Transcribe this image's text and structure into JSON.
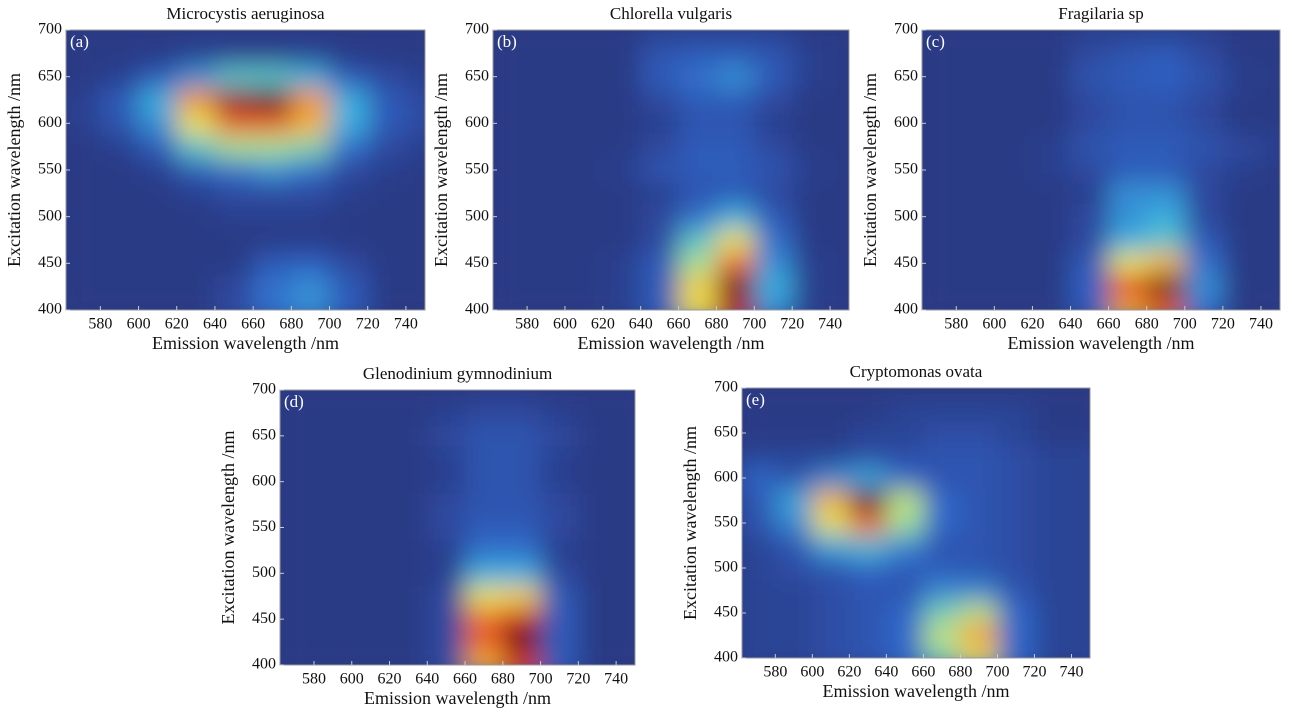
{
  "chart_data": [
    {
      "type": "heatmap",
      "title": "Microcystis aeruginosa",
      "label": "(a)",
      "xlabel": "Emission wavelength /nm",
      "ylabel": "Excitation wavelength /nm",
      "colormap": [
        "#2b3a85",
        "#2f64c8",
        "#3cb4e0",
        "#9ee39a",
        "#f3e34a",
        "#f39a2c",
        "#e0261e",
        "#5a0d10"
      ],
      "x": [
        570,
        590,
        610,
        630,
        650,
        670,
        690,
        710,
        730,
        750
      ],
      "y": [
        400,
        425,
        450,
        475,
        500,
        525,
        550,
        575,
        600,
        625,
        650,
        675,
        700
      ],
      "z": [
        [
          0.1,
          0.1,
          0.1,
          0.1,
          0.15,
          0.25,
          0.3,
          0.2,
          0.1,
          0.1
        ],
        [
          0.1,
          0.1,
          0.1,
          0.1,
          0.15,
          0.25,
          0.3,
          0.2,
          0.1,
          0.1
        ],
        [
          0.1,
          0.1,
          0.1,
          0.1,
          0.1,
          0.2,
          0.22,
          0.15,
          0.1,
          0.1
        ],
        [
          0.1,
          0.1,
          0.1,
          0.1,
          0.1,
          0.1,
          0.1,
          0.1,
          0.1,
          0.1
        ],
        [
          0.1,
          0.1,
          0.1,
          0.1,
          0.12,
          0.12,
          0.12,
          0.1,
          0.1,
          0.1
        ],
        [
          0.1,
          0.1,
          0.1,
          0.12,
          0.15,
          0.15,
          0.15,
          0.12,
          0.1,
          0.1
        ],
        [
          0.1,
          0.1,
          0.12,
          0.2,
          0.25,
          0.3,
          0.25,
          0.15,
          0.12,
          0.1
        ],
        [
          0.1,
          0.12,
          0.2,
          0.4,
          0.5,
          0.5,
          0.45,
          0.25,
          0.15,
          0.12
        ],
        [
          0.12,
          0.18,
          0.3,
          0.6,
          0.8,
          0.8,
          0.7,
          0.35,
          0.2,
          0.15
        ],
        [
          0.12,
          0.2,
          0.35,
          0.75,
          0.95,
          1,
          0.75,
          0.35,
          0.2,
          0.15
        ],
        [
          0.1,
          0.12,
          0.2,
          0.3,
          0.4,
          0.4,
          0.35,
          0.2,
          0.15,
          0.12
        ],
        [
          0.1,
          0.1,
          0.1,
          0.12,
          0.12,
          0.12,
          0.12,
          0.1,
          0.1,
          0.1
        ],
        [
          0.1,
          0.1,
          0.1,
          0.1,
          0.1,
          0.1,
          0.1,
          0.1,
          0.1,
          0.1
        ]
      ],
      "xlim": [
        562,
        750
      ],
      "ylim": [
        400,
        700
      ],
      "xticks": [
        580,
        600,
        620,
        640,
        660,
        680,
        700,
        720,
        740
      ],
      "yticks": [
        400,
        450,
        500,
        550,
        600,
        650,
        700
      ]
    },
    {
      "type": "heatmap",
      "title": "Chlorella vulgaris",
      "label": "(b)",
      "xlabel": "Emission wavelength /nm",
      "ylabel": "Excitation wavelength /nm",
      "colormap": [
        "#2b3a85",
        "#2f64c8",
        "#3cb4e0",
        "#9ee39a",
        "#f3e34a",
        "#f39a2c",
        "#e0261e",
        "#5a0d10"
      ],
      "x": [
        570,
        590,
        610,
        630,
        650,
        670,
        690,
        710,
        730,
        750
      ],
      "y": [
        400,
        425,
        450,
        475,
        500,
        525,
        550,
        575,
        600,
        625,
        650,
        675,
        700
      ],
      "z": [
        [
          0.1,
          0.1,
          0.1,
          0.12,
          0.2,
          0.6,
          0.9,
          0.3,
          0.12,
          0.1
        ],
        [
          0.1,
          0.1,
          0.1,
          0.12,
          0.2,
          0.65,
          1,
          0.35,
          0.12,
          0.1
        ],
        [
          0.1,
          0.1,
          0.1,
          0.12,
          0.2,
          0.5,
          0.8,
          0.3,
          0.12,
          0.1
        ],
        [
          0.1,
          0.1,
          0.1,
          0.1,
          0.15,
          0.4,
          0.6,
          0.25,
          0.1,
          0.1
        ],
        [
          0.1,
          0.1,
          0.1,
          0.1,
          0.15,
          0.25,
          0.35,
          0.2,
          0.1,
          0.1
        ],
        [
          0.1,
          0.1,
          0.1,
          0.1,
          0.12,
          0.18,
          0.2,
          0.15,
          0.1,
          0.1
        ],
        [
          0.1,
          0.1,
          0.1,
          0.12,
          0.18,
          0.2,
          0.2,
          0.18,
          0.12,
          0.1
        ],
        [
          0.1,
          0.1,
          0.1,
          0.1,
          0.15,
          0.2,
          0.2,
          0.15,
          0.1,
          0.1
        ],
        [
          0.1,
          0.1,
          0.1,
          0.1,
          0.12,
          0.18,
          0.18,
          0.12,
          0.1,
          0.1
        ],
        [
          0.1,
          0.1,
          0.1,
          0.1,
          0.15,
          0.2,
          0.2,
          0.15,
          0.1,
          0.1
        ],
        [
          0.1,
          0.1,
          0.1,
          0.1,
          0.2,
          0.25,
          0.3,
          0.2,
          0.12,
          0.1
        ],
        [
          0.1,
          0.1,
          0.1,
          0.1,
          0.18,
          0.2,
          0.2,
          0.18,
          0.12,
          0.1
        ],
        [
          0.1,
          0.1,
          0.1,
          0.1,
          0.12,
          0.12,
          0.12,
          0.12,
          0.1,
          0.1
        ]
      ],
      "xlim": [
        562,
        750
      ],
      "ylim": [
        400,
        700
      ],
      "xticks": [
        580,
        600,
        620,
        640,
        660,
        680,
        700,
        720,
        740
      ],
      "yticks": [
        400,
        450,
        500,
        550,
        600,
        650,
        700
      ]
    },
    {
      "type": "heatmap",
      "title": "Fragilaria sp",
      "label": "(c)",
      "xlabel": "Emission wavelength /nm",
      "ylabel": "Excitation wavelength /nm",
      "colormap": [
        "#2b3a85",
        "#2f64c8",
        "#3cb4e0",
        "#9ee39a",
        "#f3e34a",
        "#f39a2c",
        "#e0261e",
        "#5a0d10"
      ],
      "x": [
        570,
        590,
        610,
        630,
        650,
        670,
        690,
        710,
        730,
        750
      ],
      "y": [
        400,
        425,
        450,
        475,
        500,
        525,
        550,
        575,
        600,
        625,
        650,
        675,
        700
      ],
      "z": [
        [
          0.1,
          0.1,
          0.1,
          0.1,
          0.2,
          0.7,
          0.8,
          0.25,
          0.1,
          0.1
        ],
        [
          0.1,
          0.1,
          0.1,
          0.1,
          0.22,
          0.85,
          1,
          0.3,
          0.1,
          0.1
        ],
        [
          0.1,
          0.1,
          0.1,
          0.1,
          0.2,
          0.6,
          0.7,
          0.25,
          0.1,
          0.1
        ],
        [
          0.1,
          0.1,
          0.1,
          0.1,
          0.15,
          0.35,
          0.4,
          0.2,
          0.1,
          0.1
        ],
        [
          0.1,
          0.1,
          0.1,
          0.1,
          0.15,
          0.3,
          0.35,
          0.15,
          0.1,
          0.1
        ],
        [
          0.1,
          0.1,
          0.1,
          0.1,
          0.12,
          0.3,
          0.3,
          0.15,
          0.1,
          0.1
        ],
        [
          0.1,
          0.1,
          0.1,
          0.12,
          0.15,
          0.2,
          0.2,
          0.15,
          0.12,
          0.1
        ],
        [
          0.1,
          0.1,
          0.1,
          0.12,
          0.18,
          0.2,
          0.2,
          0.18,
          0.15,
          0.12
        ],
        [
          0.1,
          0.1,
          0.1,
          0.1,
          0.15,
          0.18,
          0.18,
          0.15,
          0.1,
          0.1
        ],
        [
          0.1,
          0.1,
          0.1,
          0.1,
          0.15,
          0.18,
          0.18,
          0.15,
          0.1,
          0.1
        ],
        [
          0.1,
          0.1,
          0.1,
          0.1,
          0.18,
          0.2,
          0.22,
          0.18,
          0.12,
          0.1
        ],
        [
          0.1,
          0.1,
          0.1,
          0.1,
          0.15,
          0.18,
          0.2,
          0.15,
          0.1,
          0.1
        ],
        [
          0.1,
          0.1,
          0.1,
          0.1,
          0.12,
          0.12,
          0.12,
          0.12,
          0.1,
          0.1
        ]
      ],
      "xlim": [
        562,
        750
      ],
      "ylim": [
        400,
        700
      ],
      "xticks": [
        580,
        600,
        620,
        640,
        660,
        680,
        700,
        720,
        740
      ],
      "yticks": [
        400,
        450,
        500,
        550,
        600,
        650,
        700
      ]
    },
    {
      "type": "heatmap",
      "title": "Glenodinium gymnodinium",
      "label": "(d)",
      "xlabel": "Emission wavelength /nm",
      "ylabel": "Excitation wavelength /nm",
      "colormap": [
        "#2b3a85",
        "#2f64c8",
        "#3cb4e0",
        "#9ee39a",
        "#f3e34a",
        "#f39a2c",
        "#e0261e",
        "#5a0d10"
      ],
      "x": [
        570,
        590,
        610,
        630,
        650,
        670,
        690,
        710,
        730,
        750
      ],
      "y": [
        400,
        425,
        450,
        475,
        500,
        525,
        550,
        575,
        600,
        625,
        650,
        675,
        700
      ],
      "z": [
        [
          0.1,
          0.1,
          0.1,
          0.1,
          0.15,
          0.7,
          0.85,
          0.2,
          0.1,
          0.1
        ],
        [
          0.1,
          0.1,
          0.1,
          0.1,
          0.15,
          0.8,
          1,
          0.2,
          0.1,
          0.1
        ],
        [
          0.1,
          0.1,
          0.1,
          0.1,
          0.15,
          0.8,
          0.9,
          0.2,
          0.1,
          0.1
        ],
        [
          0.1,
          0.1,
          0.1,
          0.1,
          0.15,
          0.6,
          0.65,
          0.2,
          0.1,
          0.1
        ],
        [
          0.1,
          0.1,
          0.1,
          0.1,
          0.12,
          0.35,
          0.35,
          0.15,
          0.1,
          0.1
        ],
        [
          0.1,
          0.1,
          0.1,
          0.1,
          0.12,
          0.25,
          0.25,
          0.12,
          0.1,
          0.1
        ],
        [
          0.1,
          0.1,
          0.1,
          0.1,
          0.15,
          0.2,
          0.2,
          0.15,
          0.1,
          0.1
        ],
        [
          0.1,
          0.1,
          0.1,
          0.1,
          0.15,
          0.18,
          0.18,
          0.15,
          0.1,
          0.1
        ],
        [
          0.1,
          0.1,
          0.1,
          0.1,
          0.12,
          0.18,
          0.18,
          0.12,
          0.1,
          0.1
        ],
        [
          0.1,
          0.1,
          0.1,
          0.1,
          0.12,
          0.18,
          0.18,
          0.12,
          0.1,
          0.1
        ],
        [
          0.1,
          0.1,
          0.1,
          0.1,
          0.15,
          0.18,
          0.18,
          0.15,
          0.1,
          0.1
        ],
        [
          0.1,
          0.1,
          0.1,
          0.1,
          0.12,
          0.15,
          0.15,
          0.12,
          0.1,
          0.1
        ],
        [
          0.1,
          0.1,
          0.1,
          0.1,
          0.1,
          0.1,
          0.1,
          0.1,
          0.1,
          0.1
        ]
      ],
      "xlim": [
        562,
        750
      ],
      "ylim": [
        400,
        700
      ],
      "xticks": [
        580,
        600,
        620,
        640,
        660,
        680,
        700,
        720,
        740
      ],
      "yticks": [
        400,
        450,
        500,
        550,
        600,
        650,
        700
      ]
    },
    {
      "type": "heatmap",
      "title": "Cryptomonas ovata",
      "label": "(e)",
      "xlabel": "Emission wavelength /nm",
      "ylabel": "Excitation wavelength /nm",
      "colormap": [
        "#2b3a85",
        "#2f64c8",
        "#3cb4e0",
        "#9ee39a",
        "#f3e34a",
        "#f39a2c",
        "#e0261e",
        "#5a0d10"
      ],
      "x": [
        570,
        590,
        610,
        630,
        650,
        670,
        690,
        710,
        730,
        750
      ],
      "y": [
        400,
        425,
        450,
        475,
        500,
        525,
        550,
        575,
        600,
        625,
        650,
        675,
        700
      ],
      "z": [
        [
          0.15,
          0.15,
          0.18,
          0.2,
          0.25,
          0.45,
          0.6,
          0.25,
          0.15,
          0.15
        ],
        [
          0.15,
          0.15,
          0.18,
          0.2,
          0.25,
          0.55,
          0.75,
          0.25,
          0.15,
          0.15
        ],
        [
          0.15,
          0.15,
          0.18,
          0.2,
          0.25,
          0.45,
          0.55,
          0.25,
          0.15,
          0.15
        ],
        [
          0.15,
          0.15,
          0.18,
          0.2,
          0.2,
          0.3,
          0.3,
          0.2,
          0.15,
          0.15
        ],
        [
          0.15,
          0.18,
          0.2,
          0.25,
          0.22,
          0.22,
          0.2,
          0.18,
          0.15,
          0.15
        ],
        [
          0.15,
          0.2,
          0.35,
          0.4,
          0.3,
          0.2,
          0.2,
          0.18,
          0.15,
          0.15
        ],
        [
          0.2,
          0.3,
          0.6,
          0.8,
          0.5,
          0.25,
          0.2,
          0.18,
          0.15,
          0.15
        ],
        [
          0.2,
          0.35,
          0.7,
          1,
          0.55,
          0.25,
          0.2,
          0.18,
          0.15,
          0.15
        ],
        [
          0.25,
          0.2,
          0.3,
          0.35,
          0.25,
          0.2,
          0.2,
          0.18,
          0.15,
          0.15
        ],
        [
          0.15,
          0.15,
          0.15,
          0.18,
          0.18,
          0.2,
          0.2,
          0.18,
          0.15,
          0.15
        ],
        [
          0.12,
          0.12,
          0.12,
          0.15,
          0.15,
          0.18,
          0.18,
          0.15,
          0.12,
          0.12
        ],
        [
          0.12,
          0.12,
          0.12,
          0.12,
          0.15,
          0.15,
          0.15,
          0.15,
          0.12,
          0.12
        ],
        [
          0.12,
          0.12,
          0.12,
          0.12,
          0.12,
          0.12,
          0.12,
          0.12,
          0.12,
          0.12
        ]
      ],
      "xlim": [
        562,
        750
      ],
      "ylim": [
        400,
        700
      ],
      "xticks": [
        580,
        600,
        620,
        640,
        660,
        680,
        700,
        720,
        740
      ],
      "yticks": [
        400,
        450,
        500,
        550,
        600,
        650,
        700
      ]
    }
  ]
}
